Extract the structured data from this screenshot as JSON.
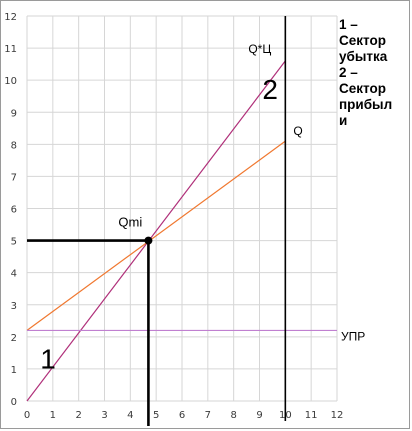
{
  "chart_data": {
    "type": "line",
    "xlim": [
      0,
      12
    ],
    "ylim": [
      0,
      12
    ],
    "x_ticks": [
      "0",
      "1",
      "2",
      "3",
      "4",
      "5",
      "6",
      "7",
      "8",
      "9",
      "10",
      "11",
      "12"
    ],
    "y_ticks": [
      "0",
      "1",
      "2",
      "3",
      "4",
      "5",
      "6",
      "7",
      "8",
      "9",
      "10",
      "11",
      "12"
    ],
    "grid": true,
    "series": [
      {
        "name": "Q*Ц",
        "color": "#b0307a",
        "x": [
          0,
          10
        ],
        "y": [
          0,
          10.6
        ]
      },
      {
        "name": "Q",
        "color": "#f07830",
        "x": [
          0,
          10
        ],
        "y": [
          2.2,
          8.1
        ]
      },
      {
        "name": "УПР",
        "color": "#c080d0",
        "x": [
          0,
          12
        ],
        "y": [
          2.2,
          2.2
        ]
      }
    ],
    "vertical_line": {
      "x": 10,
      "color": "#000000"
    },
    "break_even": {
      "label": "Qmi",
      "x": 4.7,
      "y": 5.0
    },
    "region_labels": [
      {
        "text": "1",
        "x": 0.9,
        "y": 1.2
      },
      {
        "text": "2",
        "x": 9.5,
        "y": 9.6
      }
    ],
    "legend_lines": [
      "1 –",
      "Сектор",
      "убытка",
      "2 –",
      "Сектор",
      "прибыл",
      "и"
    ]
  }
}
